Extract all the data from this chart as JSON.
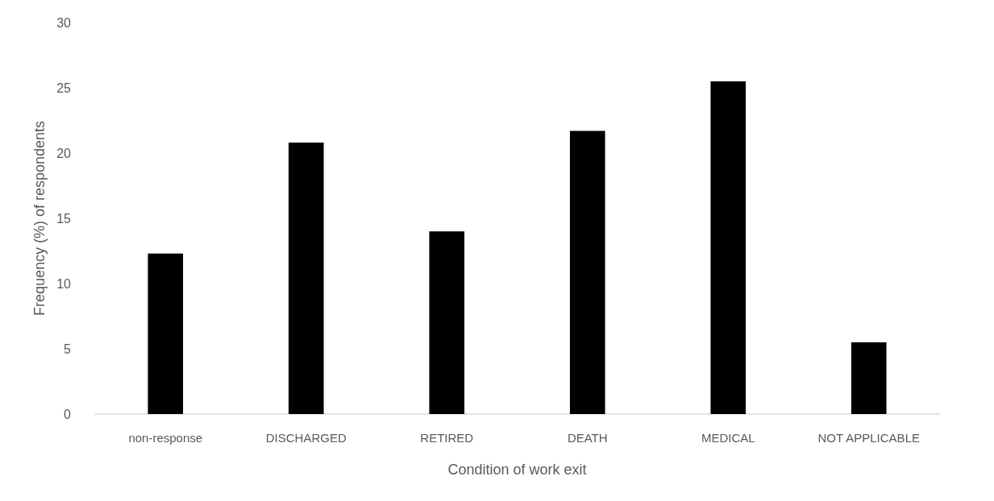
{
  "chart_data": {
    "type": "bar",
    "xlabel": "Condition of work exit",
    "ylabel": "Frequency (%) of respondents",
    "categories": [
      "non-response",
      "DISCHARGED",
      "RETIRED",
      "DEATH",
      "MEDICAL",
      "NOT APPLICABLE"
    ],
    "values": [
      12.3,
      20.8,
      14.0,
      21.7,
      25.5,
      5.5
    ],
    "color": "#000000",
    "ylim": [
      0,
      30
    ],
    "yticks": [
      0,
      5,
      10,
      15,
      20,
      25,
      30
    ],
    "grid": false
  }
}
